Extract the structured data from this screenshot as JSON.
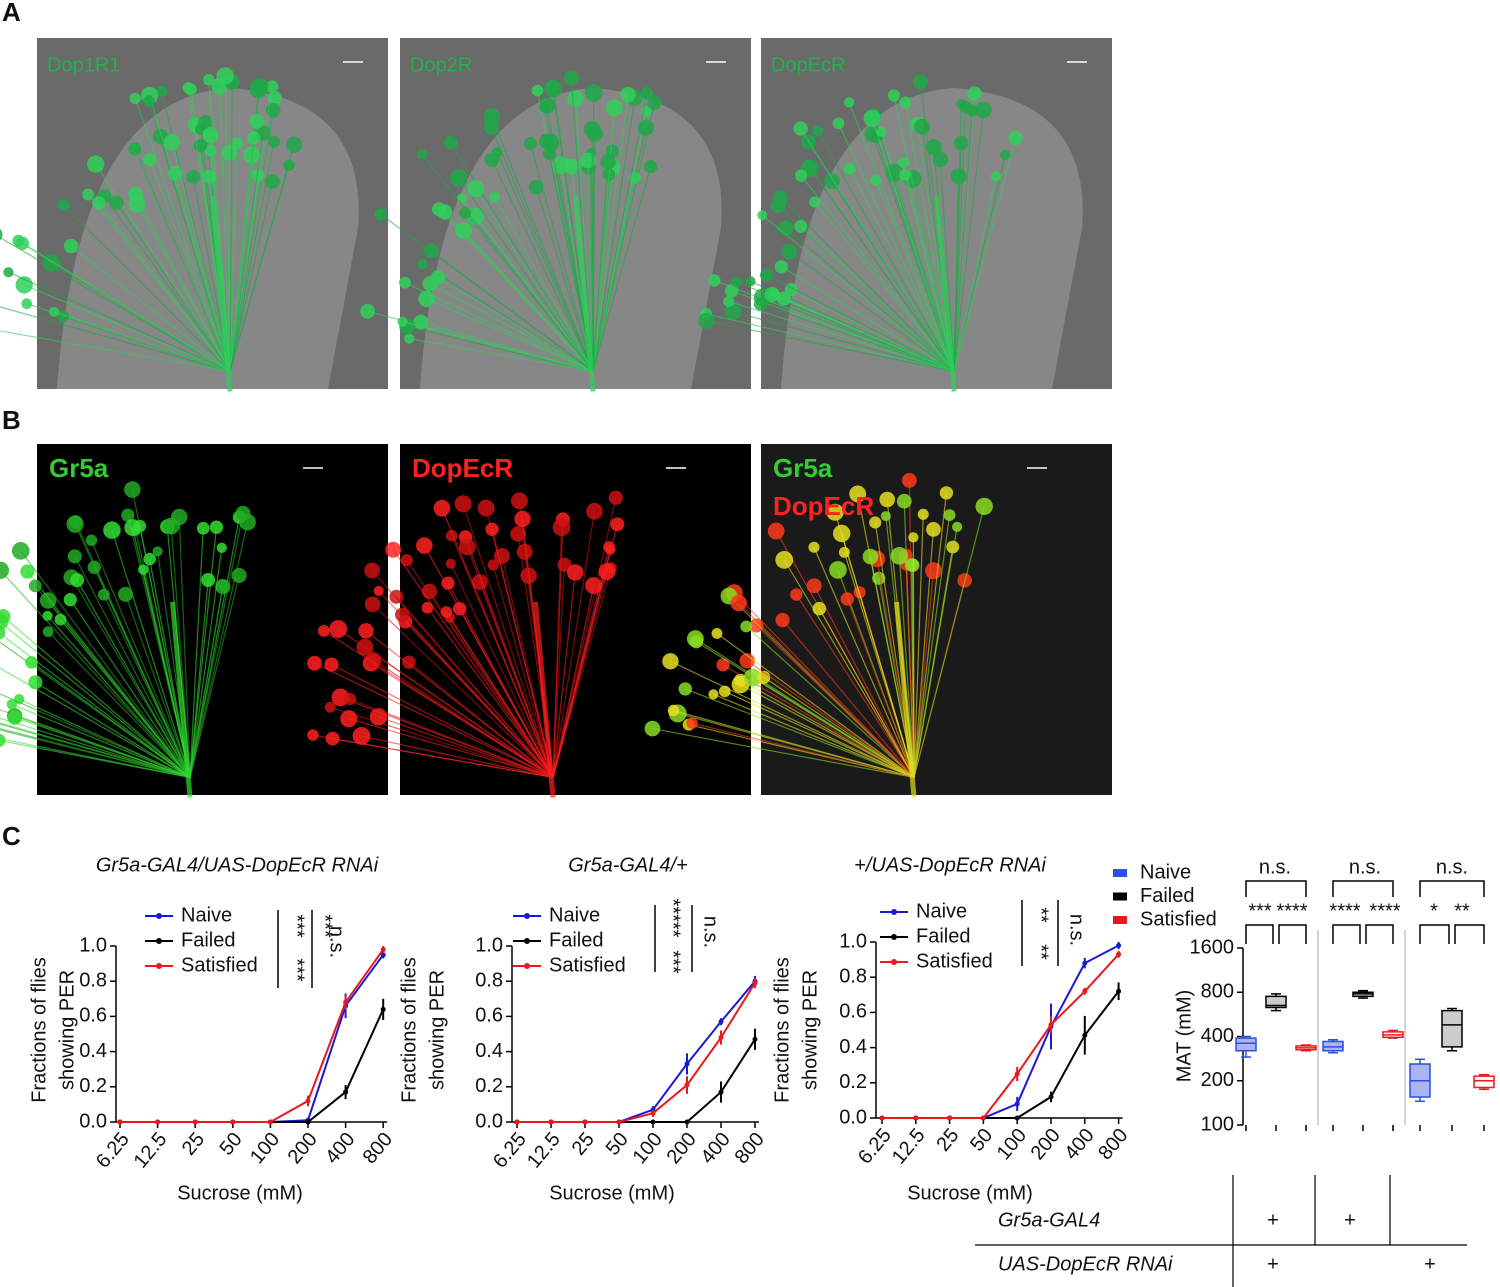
{
  "panel_a": {
    "label": "A",
    "images": [
      {
        "label": "Dop1R1"
      },
      {
        "label": "Dop2R"
      },
      {
        "label": "DopEcR"
      }
    ]
  },
  "panel_b": {
    "label": "B",
    "images": [
      {
        "labels": [
          "Gr5a"
        ]
      },
      {
        "labels": [
          "DopEcR"
        ]
      },
      {
        "labels": [
          "Gr5a",
          "DopEcR"
        ]
      }
    ]
  },
  "panel_c": {
    "label": "C",
    "charts": [
      {
        "type": "line",
        "title": "Gr5a-GAL4/UAS-DopEcR RNAi",
        "xlabel": "Sucrose (mM)",
        "ylabel": [
          "Fractions of flies",
          "showing PER"
        ],
        "categories": [
          "6.25",
          "12.5",
          "25",
          "50",
          "100",
          "200",
          "400",
          "800"
        ],
        "ylim": [
          0,
          1
        ],
        "yticks": [
          {
            "value": 0,
            "label": "0.0"
          },
          0.2,
          0.4,
          0.6,
          0.8,
          {
            "value": 1,
            "label": "1.0"
          }
        ],
        "series": [
          {
            "name": "Naive",
            "color": "#1a1ad6",
            "values": [
              0,
              0,
              0,
              0,
              0,
              0.01,
              0.66,
              0.95
            ],
            "errors": [
              0,
              0,
              0,
              0,
              0,
              0.01,
              0.07,
              0.02
            ]
          },
          {
            "name": "Failed",
            "color": "#000000",
            "values": [
              0,
              0,
              0,
              0,
              0,
              0,
              0.17,
              0.64
            ],
            "errors": [
              0,
              0,
              0,
              0,
              0,
              0,
              0.04,
              0.06
            ]
          },
          {
            "name": "Satisfied",
            "color": "#e8191d",
            "values": [
              0,
              0,
              0,
              0,
              0,
              0.12,
              0.68,
              0.98
            ],
            "errors": [
              0,
              0,
              0,
              0,
              0,
              0.03,
              0.04,
              0.02
            ]
          }
        ],
        "annotations": [
          "***",
          "***",
          "***",
          "n.s."
        ]
      },
      {
        "type": "line",
        "title": "Gr5a-GAL4/+",
        "xlabel": "Sucrose (mM)",
        "ylabel": [
          "Fractions of flies",
          "showing PER"
        ],
        "categories": [
          "6.25",
          "12.5",
          "25",
          "50",
          "100",
          "200",
          "400",
          "800"
        ],
        "ylim": [
          0,
          1
        ],
        "yticks": [
          {
            "value": 0,
            "label": "0.0"
          },
          0.2,
          0.4,
          0.6,
          0.8,
          {
            "value": 1,
            "label": "1.0"
          }
        ],
        "series": [
          {
            "name": "Naive",
            "color": "#1a1ad6",
            "values": [
              0,
              0,
              0,
              0,
              0.07,
              0.33,
              0.57,
              0.8
            ],
            "errors": [
              0,
              0,
              0,
              0,
              0.02,
              0.06,
              0.02,
              0.03
            ]
          },
          {
            "name": "Failed",
            "color": "#000000",
            "values": [
              0,
              0,
              0,
              0,
              0,
              0,
              0.17,
              0.47
            ],
            "errors": [
              0,
              0,
              0,
              0,
              0,
              0,
              0.06,
              0.06
            ]
          },
          {
            "name": "Satisfied",
            "color": "#e8191d",
            "values": [
              0,
              0,
              0,
              0,
              0.05,
              0.21,
              0.48,
              0.79
            ],
            "errors": [
              0,
              0,
              0,
              0,
              0.02,
              0.05,
              0.04,
              0.03
            ]
          }
        ],
        "annotations": [
          "*****",
          "***",
          "n.s."
        ]
      },
      {
        "type": "line",
        "title": "+/UAS-DopEcR RNAi",
        "xlabel": "Sucrose (mM)",
        "ylabel": [
          "Fractions of flies",
          "showing PER"
        ],
        "categories": [
          "6.25",
          "12.5",
          "25",
          "50",
          "100",
          "200",
          "400",
          "800"
        ],
        "ylim": [
          0,
          1
        ],
        "yticks": [
          {
            "value": 0,
            "label": "0.0"
          },
          0.2,
          0.4,
          0.6,
          0.8,
          {
            "value": 1,
            "label": "1.0"
          }
        ],
        "series": [
          {
            "name": "Naive",
            "color": "#1a1ad6",
            "values": [
              0,
              0,
              0,
              0,
              0.08,
              0.52,
              0.88,
              0.98
            ],
            "errors": [
              0,
              0,
              0,
              0,
              0.04,
              0.13,
              0.03,
              0.02
            ]
          },
          {
            "name": "Failed",
            "color": "#000000",
            "values": [
              0,
              0,
              0,
              0,
              0,
              0.12,
              0.47,
              0.72
            ],
            "errors": [
              0,
              0,
              0,
              0,
              0,
              0.03,
              0.11,
              0.05
            ]
          },
          {
            "name": "Satisfied",
            "color": "#e8191d",
            "values": [
              0,
              0,
              0,
              0,
              0.25,
              0.53,
              0.72,
              0.93
            ],
            "errors": [
              0,
              0,
              0,
              0,
              0.04,
              0.05,
              0.02,
              0.02
            ]
          }
        ],
        "annotations": [
          "**",
          "**",
          "n.s."
        ]
      }
    ],
    "boxplot": {
      "type": "box",
      "ylabel": "MAT (mM)",
      "log_scale": true,
      "ylim": [
        100,
        1600
      ],
      "yticks": [
        100,
        200,
        400,
        800,
        1600
      ],
      "series": [
        {
          "name": "Naive",
          "color": "#2b4fe0",
          "fill": "#aab4f0",
          "boxes": [
            {
              "min": 290,
              "q1": 320,
              "median": 360,
              "q3": 390,
              "max": 400
            },
            {
              "min": 310,
              "q1": 320,
              "median": 340,
              "q3": 370,
              "max": 380
            },
            {
              "min": 145,
              "q1": 155,
              "median": 200,
              "q3": 260,
              "max": 280
            }
          ]
        },
        {
          "name": "Failed",
          "color": "#000000",
          "fill": "#cccccc",
          "boxes": [
            {
              "min": 600,
              "q1": 630,
              "median": 650,
              "q3": 750,
              "max": 780
            },
            {
              "min": 730,
              "q1": 750,
              "median": 780,
              "q3": 800,
              "max": 820
            },
            {
              "min": 320,
              "q1": 340,
              "median": 480,
              "q3": 600,
              "max": 620
            }
          ]
        },
        {
          "name": "Satisfied",
          "color": "#e8191d",
          "fill": "none",
          "boxes": [
            {
              "min": 320,
              "q1": 325,
              "median": 335,
              "q3": 345,
              "max": 350
            },
            {
              "min": 390,
              "q1": 395,
              "median": 410,
              "q3": 430,
              "max": 440
            },
            {
              "min": 175,
              "q1": 180,
              "median": 200,
              "q3": 215,
              "max": 220
            }
          ]
        }
      ],
      "annotations": [
        "n.s.",
        "n.s.",
        "n.s.",
        "***",
        "****",
        "****",
        "****",
        "*",
        "**"
      ]
    },
    "table": {
      "rows": [
        {
          "label": "Gr5a-GAL4",
          "cells": [
            "+",
            "+",
            null
          ]
        },
        {
          "label": "UAS-DopEcR RNAi",
          "cells": [
            "+",
            null,
            "+"
          ]
        }
      ]
    }
  }
}
